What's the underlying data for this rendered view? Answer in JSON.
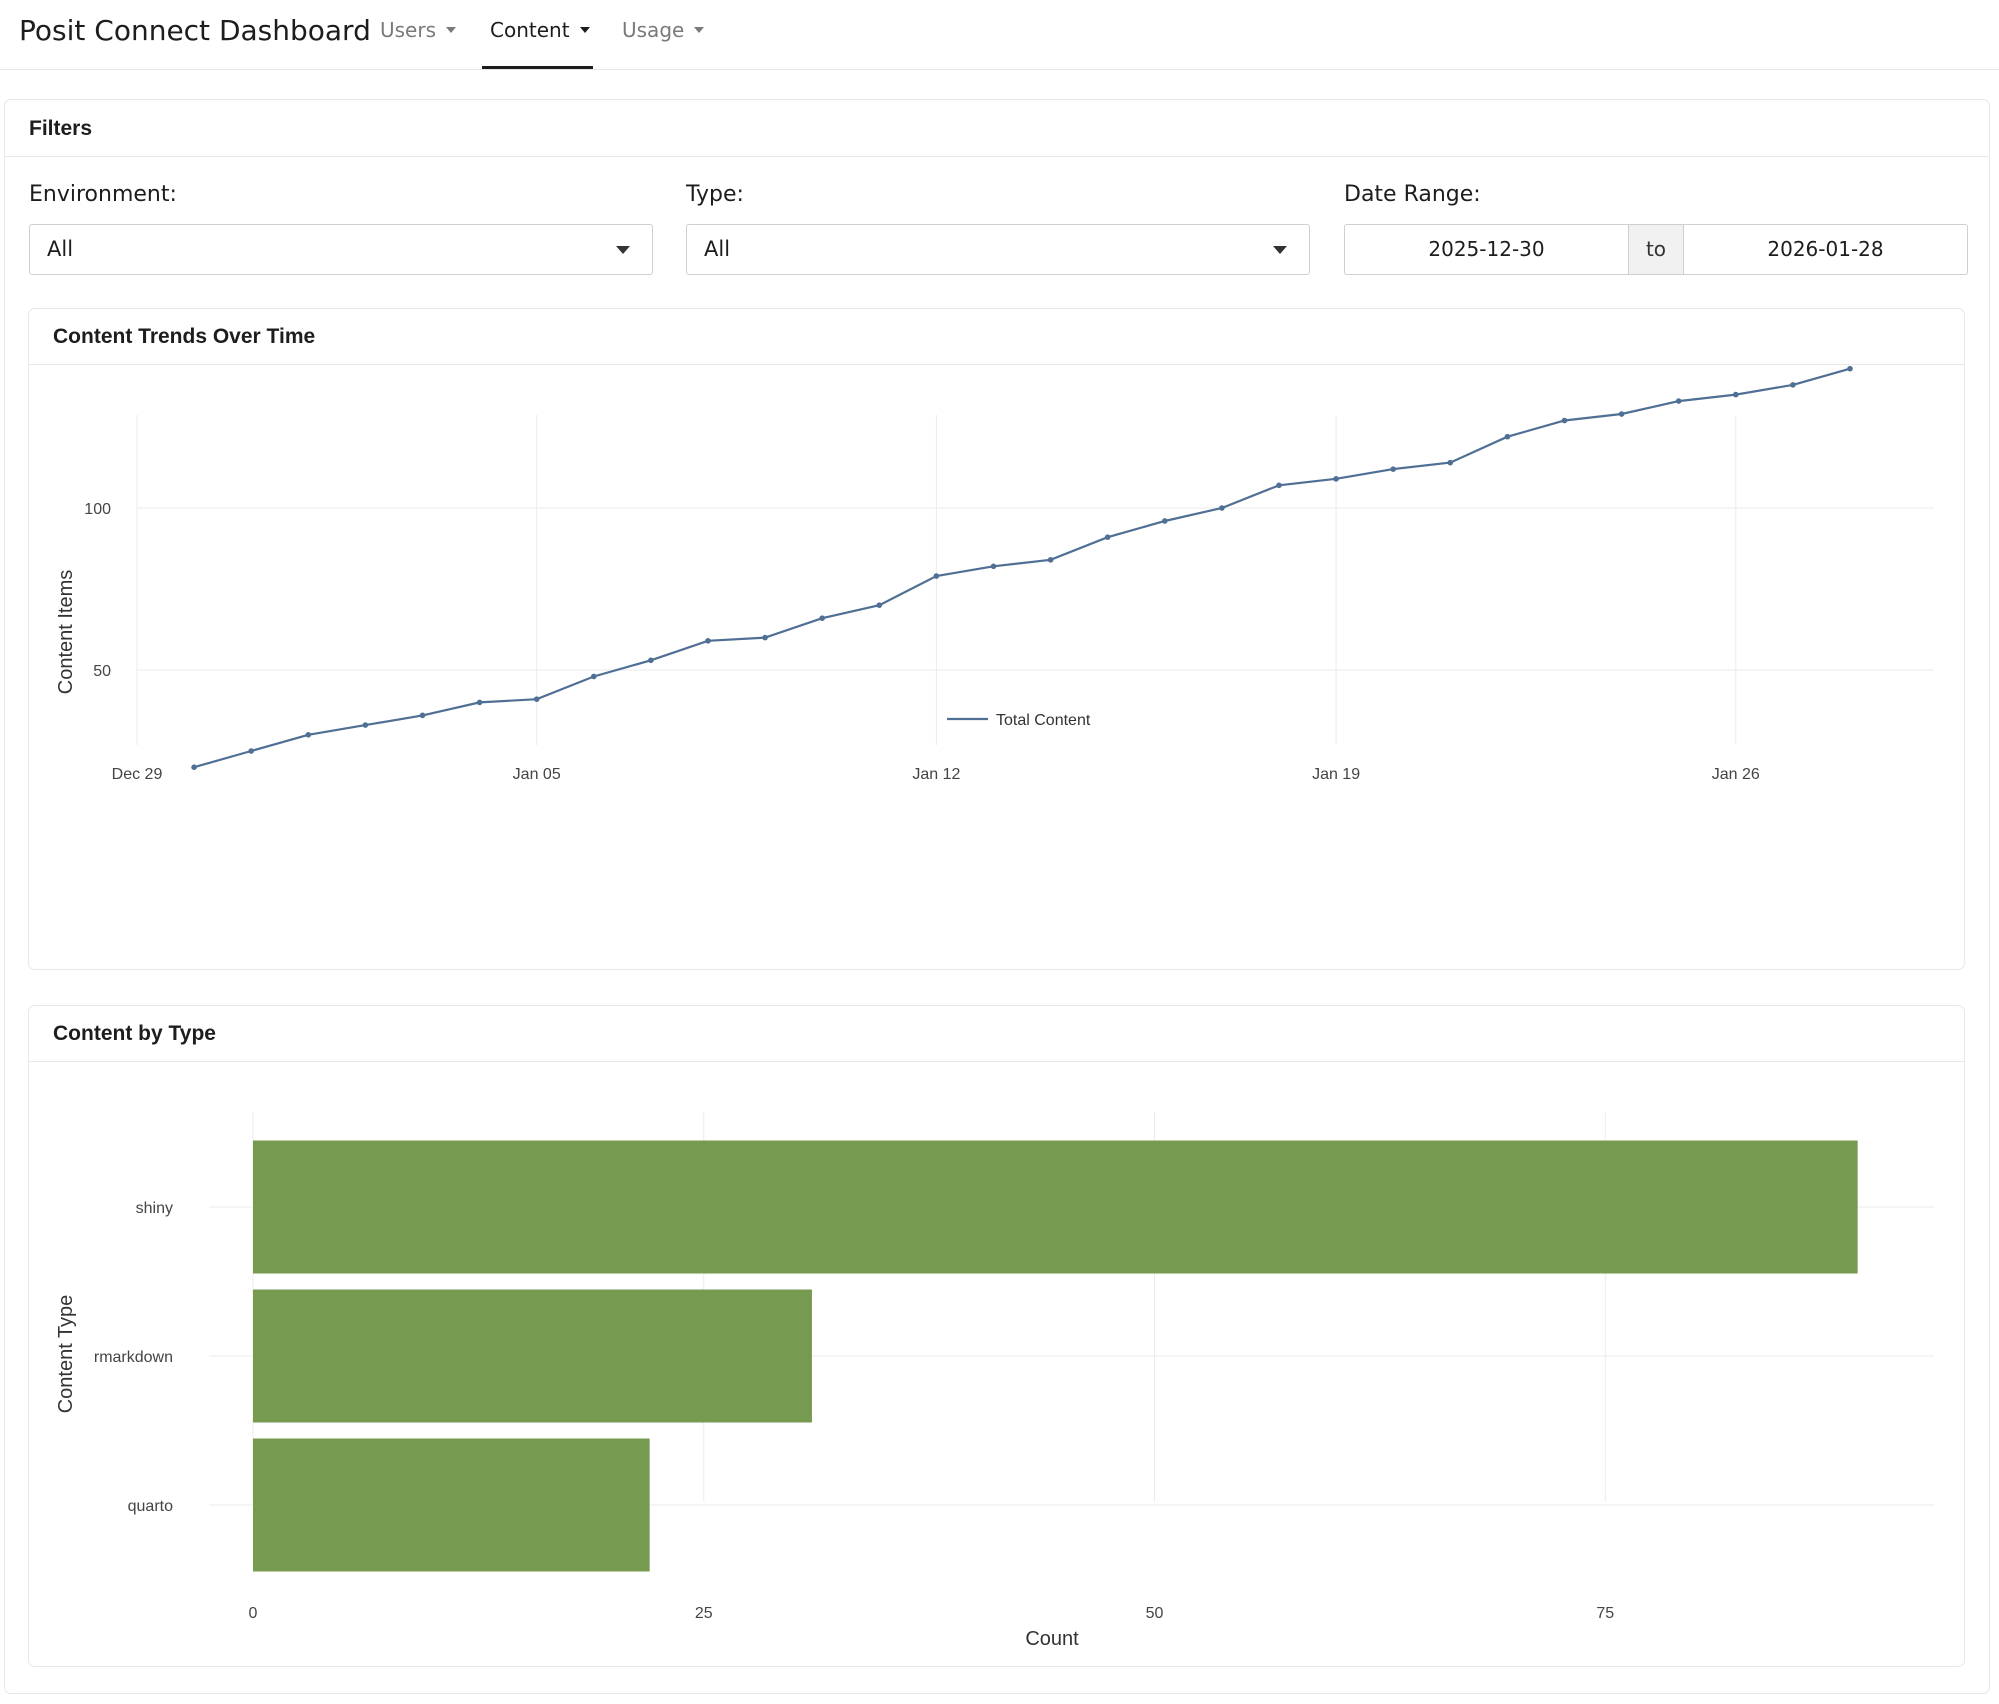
{
  "navbar": {
    "brand": "Posit Connect Dashboard",
    "menus": [
      {
        "label": "Users",
        "active": false
      },
      {
        "label": "Content",
        "active": true
      },
      {
        "label": "Usage",
        "active": false
      }
    ]
  },
  "filters": {
    "title": "Filters",
    "environment": {
      "label": "Environment:",
      "value": "All"
    },
    "type": {
      "label": "Type:",
      "value": "All"
    },
    "date_range": {
      "label": "Date Range:",
      "start": "2025-12-30",
      "separator": "to",
      "end": "2026-01-28"
    }
  },
  "colors": {
    "line": "#4f6f94",
    "bar": "#759a50",
    "grid": "#ebebeb"
  },
  "chart_data": [
    {
      "type": "line",
      "title": "Content Trends Over Time",
      "ylabel": "Content Items",
      "xlabel": "",
      "x_ticks": [
        "Dec 29",
        "Jan 05",
        "Jan 12",
        "Jan 19",
        "Jan 26"
      ],
      "y_ticks": [
        50,
        100
      ],
      "grid": true,
      "legend": "bottom",
      "x": [
        "2025-12-30",
        "2025-12-31",
        "2026-01-01",
        "2026-01-02",
        "2026-01-03",
        "2026-01-04",
        "2026-01-05",
        "2026-01-06",
        "2026-01-07",
        "2026-01-08",
        "2026-01-09",
        "2026-01-10",
        "2026-01-11",
        "2026-01-12",
        "2026-01-13",
        "2026-01-14",
        "2026-01-15",
        "2026-01-16",
        "2026-01-17",
        "2026-01-18",
        "2026-01-19",
        "2026-01-20",
        "2026-01-21",
        "2026-01-22",
        "2026-01-23",
        "2026-01-24",
        "2026-01-25",
        "2026-01-26",
        "2026-01-27",
        "2026-01-28"
      ],
      "series": [
        {
          "name": "Total Content",
          "values": [
            20,
            25,
            30,
            33,
            36,
            40,
            41,
            48,
            53,
            59,
            60,
            66,
            70,
            79,
            82,
            84,
            91,
            96,
            100,
            107,
            109,
            112,
            114,
            122,
            127,
            129,
            133,
            135,
            138,
            143
          ]
        }
      ]
    },
    {
      "type": "bar",
      "orientation": "horizontal",
      "title": "Content by Type",
      "xlabel": "Count",
      "ylabel": "Content Type",
      "categories": [
        "shiny",
        "rmarkdown",
        "quarto"
      ],
      "values": [
        89,
        31,
        22
      ],
      "x_ticks": [
        0,
        25,
        50,
        75
      ],
      "grid": true
    }
  ]
}
